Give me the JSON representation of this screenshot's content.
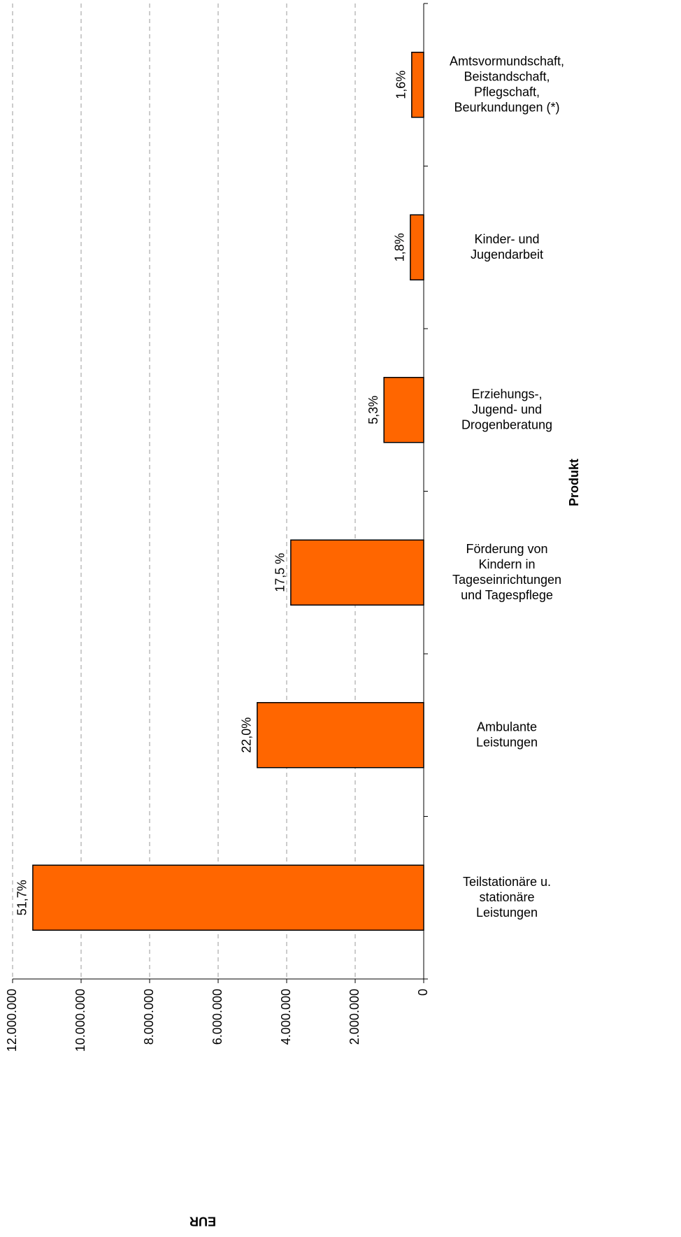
{
  "chart_data": {
    "type": "bar",
    "orientation": "horizontal",
    "categories": [
      "Teilstationäre u.\nstationäre\nLeistungen",
      "Ambulante\nLeistungen",
      "Förderung von\nKindern in\nTageseinrichtungen\nund Tagespflege",
      "Erziehungs-,\nJugend- und\nDrogenberatung",
      "Kinder- und\nJugendarbeit",
      "Amtsvormundschaft,\nBeistandschaft,\nPflegschaft,\nBeurkundungen  (*)"
    ],
    "values": [
      11410000,
      4860000,
      3880000,
      1160000,
      390000,
      350000
    ],
    "annotations": [
      "51,7%",
      "22,0%",
      "17,5 %",
      "5,3%",
      "1,8%",
      "1,6%"
    ],
    "color": "#ff6600",
    "ylim": [
      0,
      12000000
    ],
    "yticks": [
      0,
      {
        "value": 2000000,
        "label": "2.000.000"
      },
      {
        "value": 4000000,
        "label": "4.000.000"
      },
      {
        "value": 6000000,
        "label": "6.000.000"
      },
      {
        "value": 8000000,
        "label": "8.000.000"
      },
      {
        "value": 10000000,
        "label": "10.000.000"
      },
      {
        "value": 12000000,
        "label": "12.000.000"
      }
    ],
    "grid": true,
    "ylabel": "EUR",
    "xlabel": "Produkt"
  }
}
